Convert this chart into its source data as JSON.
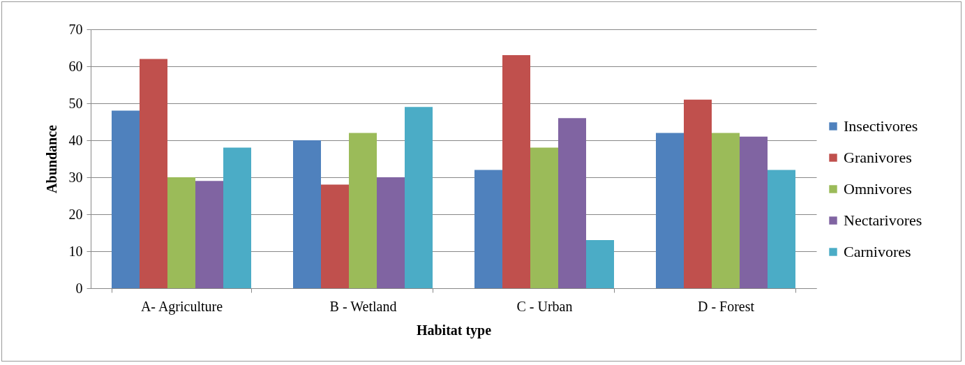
{
  "chart_data": {
    "type": "bar",
    "xlabel": "Habitat type",
    "ylabel": "Abundance",
    "categories": [
      "A- Agriculture",
      "B - Wetland",
      "C - Urban",
      "D - Forest"
    ],
    "series": [
      {
        "name": "Insectivores",
        "color": "#4f81bd",
        "values": [
          48,
          40,
          32,
          42
        ]
      },
      {
        "name": "Granivores",
        "color": "#c0504d",
        "values": [
          62,
          28,
          63,
          51
        ]
      },
      {
        "name": "Omnivores",
        "color": "#9bbb59",
        "values": [
          30,
          42,
          38,
          42
        ]
      },
      {
        "name": "Nectarivores",
        "color": "#8064a2",
        "values": [
          29,
          30,
          46,
          41
        ]
      },
      {
        "name": "Carnivores",
        "color": "#4bacc6",
        "values": [
          38,
          49,
          13,
          32
        ]
      }
    ],
    "ylim": [
      0,
      70
    ],
    "yticks": [
      0,
      10,
      20,
      30,
      40,
      50,
      60,
      70
    ],
    "grid": "y",
    "legend": "right"
  }
}
